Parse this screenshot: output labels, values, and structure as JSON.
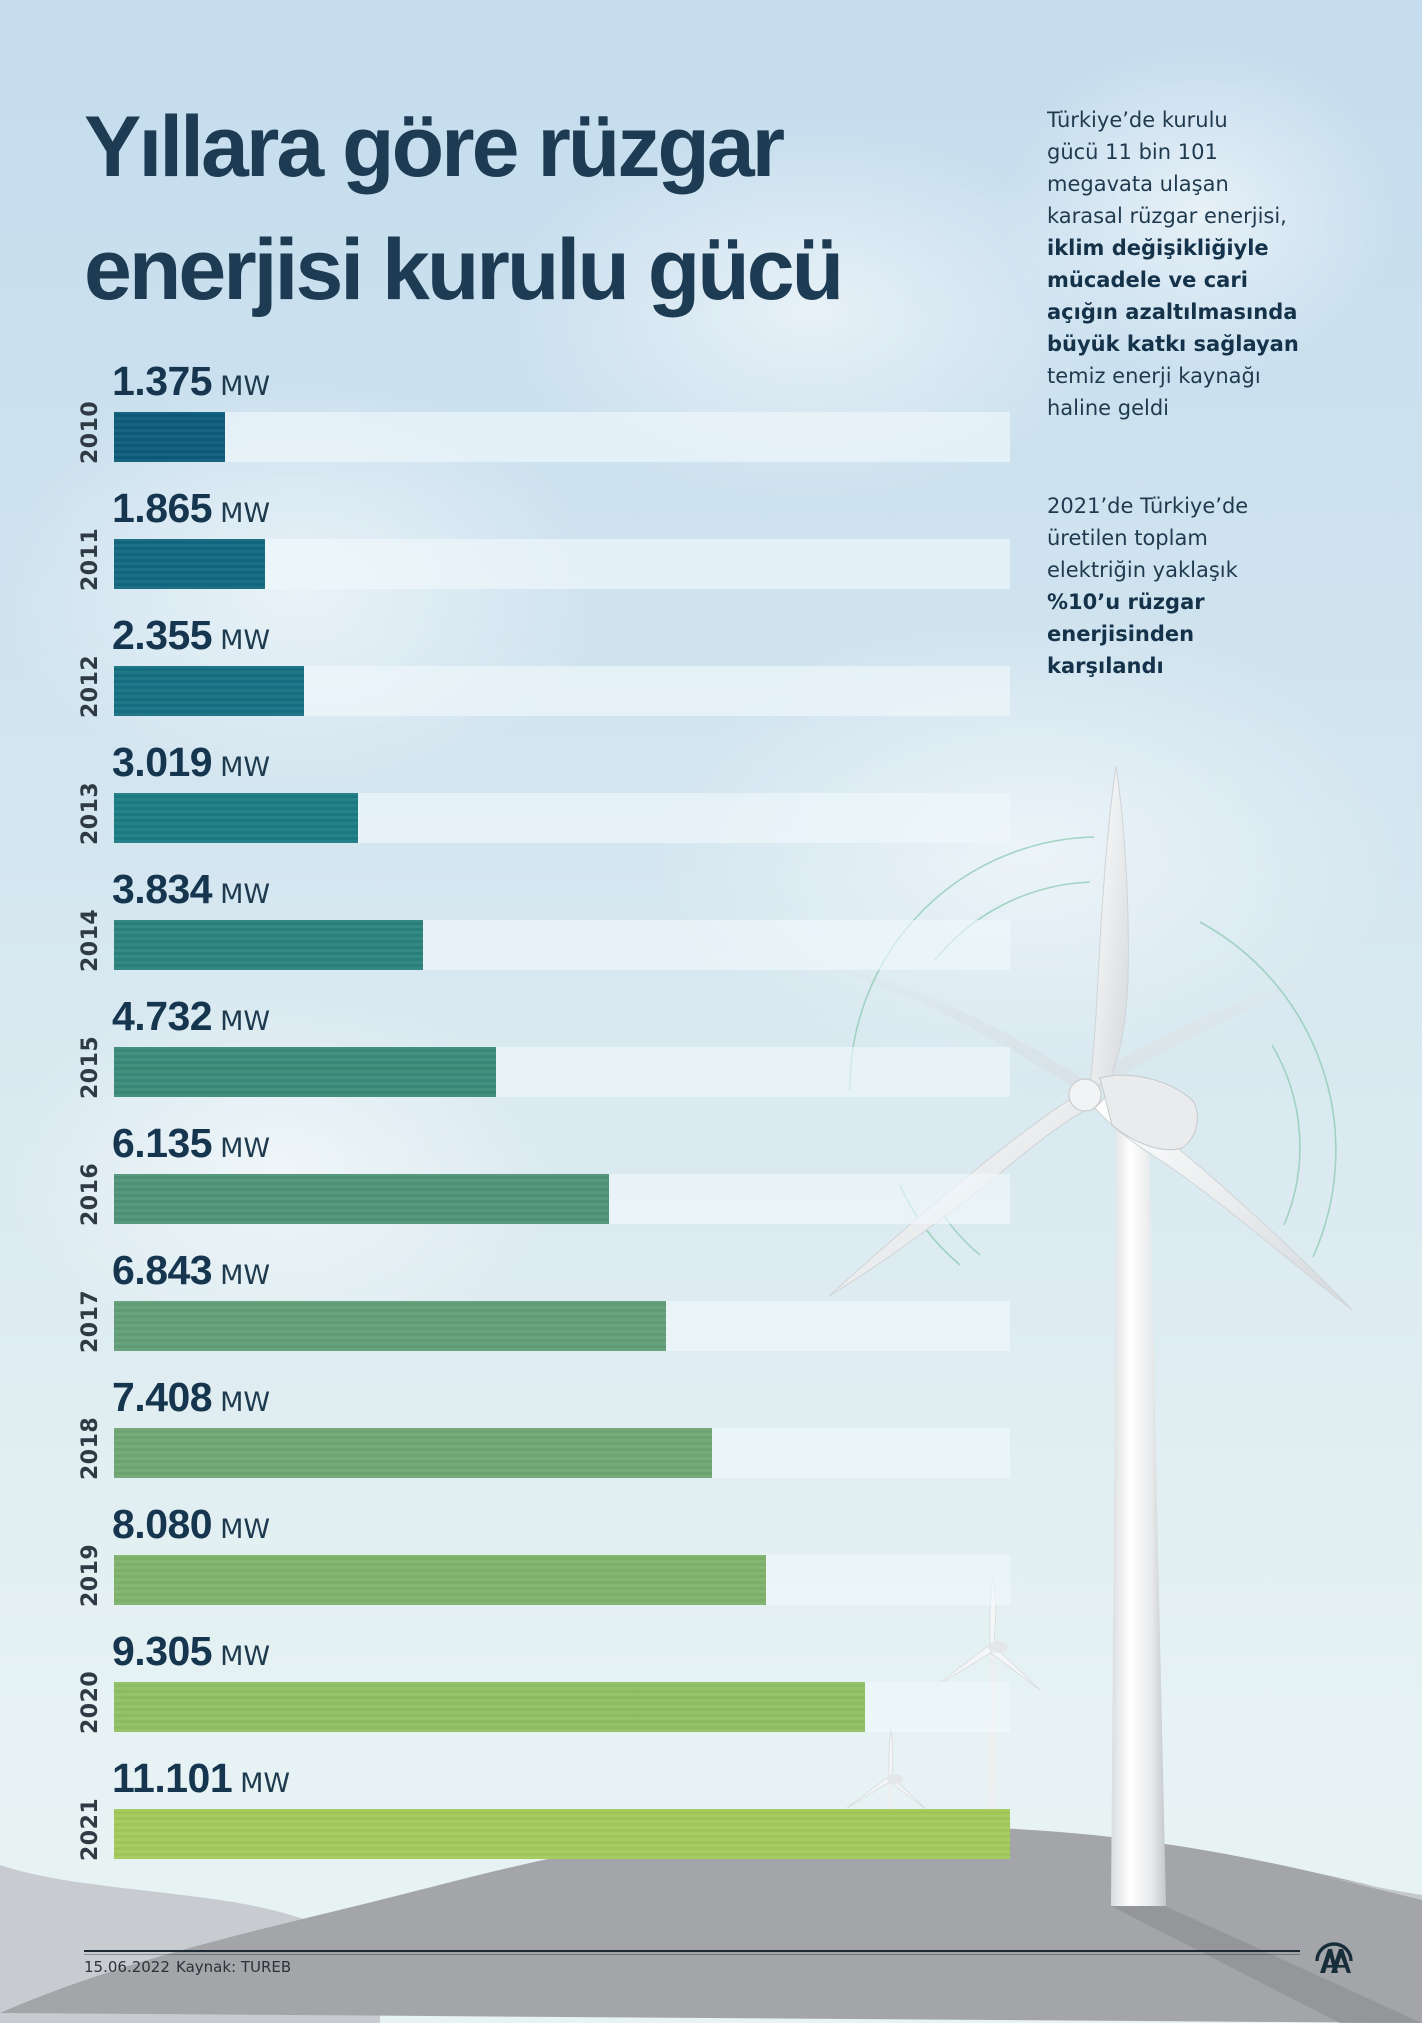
{
  "header": {
    "title_lines": [
      "Yıllara göre rüzgar",
      "enerjisi kurulu gücü"
    ]
  },
  "side_text_1": {
    "lines": [
      {
        "text": "Türkiye’de kurulu",
        "bold": false
      },
      {
        "text": "gücü 11 bin 101",
        "bold": false
      },
      {
        "text": "megavata ulaşan",
        "bold": false
      },
      {
        "text": "karasal rüzgar enerjisi,",
        "bold": false
      },
      {
        "text": "iklim değişikliğiyle",
        "bold": true
      },
      {
        "text": "mücadele ve cari",
        "bold": true
      },
      {
        "text": "açığın azaltılmasında",
        "bold": true
      },
      {
        "text": "büyük katkı sağlayan",
        "bold": true
      },
      {
        "text": "temiz enerji kaynağı",
        "bold": false
      },
      {
        "text": "haline geldi",
        "bold": false
      }
    ]
  },
  "side_text_2": {
    "lines": [
      {
        "text": "2021’de Türkiye’de",
        "bold": false
      },
      {
        "text": "üretilen toplam",
        "bold": false
      },
      {
        "text": "elektriğin yaklaşık",
        "bold": false
      },
      {
        "text": "%10’u rüzgar",
        "bold": true
      },
      {
        "text": "enerjisinden",
        "bold": true
      },
      {
        "text": "karşılandı",
        "bold": true
      }
    ]
  },
  "chart_data": {
    "type": "bar",
    "orientation": "horizontal",
    "title": "Yıllara göre rüzgar enerjisi kurulu gücü",
    "xlabel": "",
    "ylabel": "",
    "unit": "MW",
    "xlim": [
      0,
      11101
    ],
    "grid": false,
    "legend": "none",
    "categories": [
      "2010",
      "2011",
      "2012",
      "2013",
      "2014",
      "2015",
      "2016",
      "2017",
      "2018",
      "2019",
      "2020",
      "2021"
    ],
    "values": [
      1375,
      1865,
      2355,
      3019,
      3834,
      4732,
      6135,
      6843,
      7408,
      8080,
      9305,
      11101
    ],
    "value_labels": [
      "1.375",
      "1.865",
      "2.355",
      "3.019",
      "3.834",
      "4.732",
      "6.135",
      "6.843",
      "7.408",
      "8.080",
      "9.305",
      "11.101"
    ],
    "colors": [
      "#0d5b7a",
      "#11677f",
      "#156f82",
      "#1b7a82",
      "#2a827d",
      "#3a8a78",
      "#4e9478",
      "#619e76",
      "#6fa673",
      "#7eb26c",
      "#8fbf63",
      "#a2c95a"
    ]
  },
  "footer": {
    "date": "15.06.2022",
    "source": "Kaynak: TUREB",
    "logo": "AA"
  },
  "icons": {
    "logo": "anadolu-agency-logo-icon",
    "illustration": "wind-turbine-icon"
  },
  "colors": {
    "title": "#1d3b52",
    "text": "#1f3a4e",
    "ground": "#a4a6aa",
    "ground_light": "#c9cdd1"
  }
}
